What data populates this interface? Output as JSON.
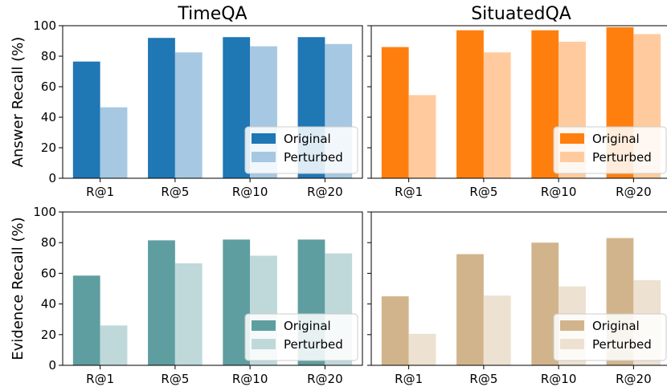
{
  "chart_data": [
    {
      "type": "bar",
      "title": "TimeQA",
      "xlabel": "",
      "ylabel": "Answer Recall (%)",
      "ylim": [
        0,
        100
      ],
      "yticks": [
        0,
        20,
        40,
        60,
        80,
        100
      ],
      "categories": [
        "R@1",
        "R@5",
        "R@10",
        "R@20"
      ],
      "legend": "lower right",
      "series": [
        {
          "name": "Original",
          "color": "#1f77b4",
          "values": [
            76.5,
            92,
            92.5,
            92.5
          ]
        },
        {
          "name": "Perturbed",
          "color": "#a6c8e2",
          "values": [
            46.5,
            82.5,
            86.5,
            88
          ]
        }
      ]
    },
    {
      "type": "bar",
      "title": "SituatedQA",
      "xlabel": "",
      "ylabel": "",
      "ylim": [
        0,
        100
      ],
      "yticks": [
        0,
        20,
        40,
        60,
        80,
        100
      ],
      "categories": [
        "R@1",
        "R@5",
        "R@10",
        "R@20"
      ],
      "legend": "lower right",
      "series": [
        {
          "name": "Original",
          "color": "#ff7f0e",
          "values": [
            86,
            97,
            97,
            99
          ]
        },
        {
          "name": "Perturbed",
          "color": "#ffcb9e",
          "values": [
            54.5,
            82.5,
            89.5,
            94.5
          ]
        }
      ]
    },
    {
      "type": "bar",
      "title": "",
      "xlabel": "",
      "ylabel": "Evidence Recall (%)",
      "ylim": [
        0,
        100
      ],
      "yticks": [
        0,
        20,
        40,
        60,
        80,
        100
      ],
      "categories": [
        "R@1",
        "R@5",
        "R@10",
        "R@20"
      ],
      "legend": "lower right",
      "series": [
        {
          "name": "Original",
          "color": "#5f9ea0",
          "values": [
            58.5,
            81.5,
            82,
            82
          ]
        },
        {
          "name": "Perturbed",
          "color": "#bfd9da",
          "values": [
            26,
            66.5,
            71.5,
            73
          ]
        }
      ]
    },
    {
      "type": "bar",
      "title": "",
      "xlabel": "",
      "ylabel": "",
      "ylim": [
        0,
        100
      ],
      "yticks": [
        0,
        20,
        40,
        60,
        80,
        100
      ],
      "categories": [
        "R@1",
        "R@5",
        "R@10",
        "R@20"
      ],
      "legend": "lower right",
      "series": [
        {
          "name": "Original",
          "color": "#d2b48c",
          "values": [
            45,
            72.5,
            80,
            83
          ]
        },
        {
          "name": "Perturbed",
          "color": "#ede1d1",
          "values": [
            20.5,
            45.5,
            51.5,
            55.5
          ]
        }
      ]
    }
  ]
}
